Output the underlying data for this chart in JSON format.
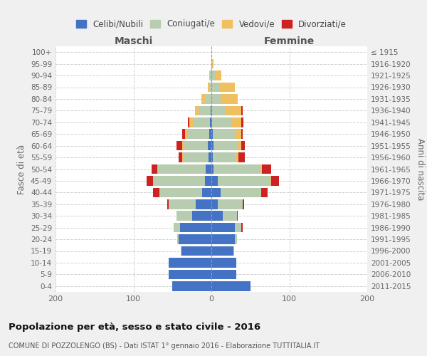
{
  "age_groups": [
    "0-4",
    "5-9",
    "10-14",
    "15-19",
    "20-24",
    "25-29",
    "30-34",
    "35-39",
    "40-44",
    "45-49",
    "50-54",
    "55-59",
    "60-64",
    "65-69",
    "70-74",
    "75-79",
    "80-84",
    "85-89",
    "90-94",
    "95-99",
    "100+"
  ],
  "birth_years": [
    "2011-2015",
    "2006-2010",
    "2001-2005",
    "1996-2000",
    "1991-1995",
    "1986-1990",
    "1981-1985",
    "1976-1980",
    "1971-1975",
    "1966-1970",
    "1961-1965",
    "1956-1960",
    "1951-1955",
    "1946-1950",
    "1941-1945",
    "1936-1940",
    "1931-1935",
    "1926-1930",
    "1921-1925",
    "1916-1920",
    "≤ 1915"
  ],
  "colors": {
    "celibi": "#4472C4",
    "coniugati": "#B8CCB0",
    "vedovi": "#F0C060",
    "divorziati": "#CC2222"
  },
  "legend_labels": [
    "Celibi/Nubili",
    "Coniugati/e",
    "Vedovi/e",
    "Divorziati/e"
  ],
  "maschi": {
    "celibi": [
      50,
      55,
      55,
      38,
      42,
      40,
      25,
      20,
      12,
      8,
      7,
      4,
      5,
      3,
      2,
      1,
      0,
      0,
      0,
      0,
      0
    ],
    "coniugati": [
      0,
      0,
      0,
      1,
      2,
      8,
      20,
      35,
      55,
      67,
      62,
      32,
      30,
      28,
      22,
      15,
      8,
      3,
      2,
      0,
      0
    ],
    "vedovi": [
      0,
      0,
      0,
      0,
      0,
      0,
      0,
      0,
      0,
      0,
      0,
      1,
      2,
      3,
      4,
      5,
      5,
      2,
      1,
      0,
      0
    ],
    "divorziati": [
      0,
      0,
      0,
      0,
      0,
      0,
      0,
      2,
      8,
      8,
      8,
      5,
      8,
      3,
      2,
      0,
      0,
      0,
      0,
      0,
      0
    ]
  },
  "femmine": {
    "nubili": [
      50,
      32,
      32,
      28,
      30,
      30,
      15,
      8,
      12,
      8,
      3,
      2,
      3,
      2,
      1,
      0,
      0,
      0,
      0,
      0,
      0
    ],
    "coniugate": [
      0,
      0,
      0,
      1,
      3,
      8,
      18,
      32,
      52,
      68,
      60,
      30,
      30,
      28,
      25,
      18,
      12,
      10,
      5,
      1,
      0
    ],
    "vedove": [
      0,
      0,
      0,
      0,
      0,
      0,
      0,
      0,
      0,
      1,
      2,
      3,
      5,
      8,
      12,
      20,
      22,
      20,
      8,
      2,
      0
    ],
    "divorziate": [
      0,
      0,
      0,
      0,
      0,
      2,
      1,
      2,
      8,
      10,
      12,
      8,
      5,
      2,
      3,
      2,
      0,
      0,
      0,
      0,
      0
    ]
  },
  "title": "Popolazione per età, sesso e stato civile - 2016",
  "subtitle": "COMUNE DI POZZOLENGO (BS) - Dati ISTAT 1° gennaio 2016 - Elaborazione TUTTITALIA.IT",
  "xlabel_left": "Maschi",
  "xlabel_right": "Femmine",
  "ylabel_left": "Fasce di età",
  "ylabel_right": "Anni di nascita",
  "xlim": 200,
  "bg_color": "#f0f0f0",
  "plot_bg_color": "#ffffff",
  "grid_color": "#cccccc"
}
